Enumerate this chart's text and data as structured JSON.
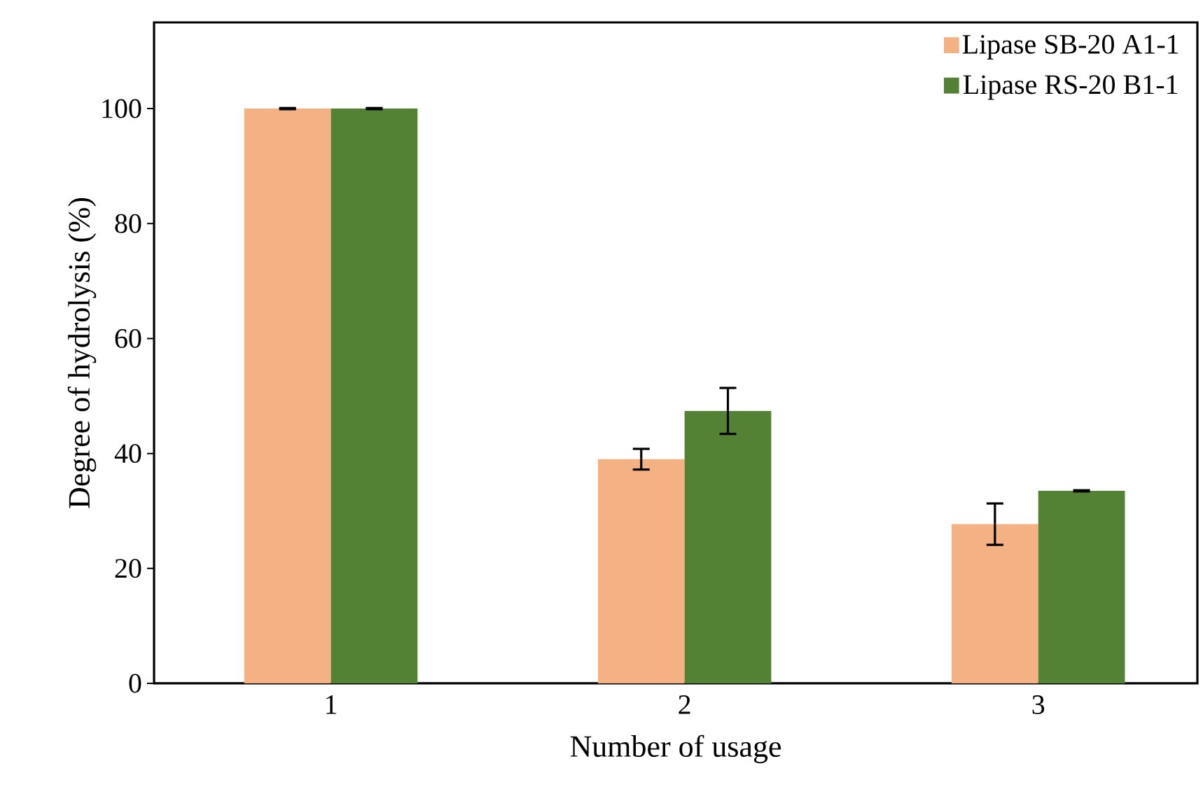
{
  "chart_data": {
    "type": "bar",
    "xlabel": "Number of usage",
    "ylabel": "Degree of hydrolysis (%)",
    "categories": [
      "1",
      "2",
      "3"
    ],
    "series": [
      {
        "name": "Lipase SB-20 A1-1",
        "color": "#f4b183",
        "values": [
          100,
          39.0,
          27.7
        ],
        "errors": [
          0.1,
          1.8,
          3.6
        ]
      },
      {
        "name": "Lipase RS-20 B1-1",
        "color": "#548235",
        "values": [
          100,
          47.4,
          33.5
        ],
        "errors": [
          0.1,
          4.0,
          0.1
        ]
      }
    ],
    "ylim": [
      0,
      115
    ],
    "yticks": [
      0,
      20,
      40,
      60,
      80,
      100
    ],
    "legend": "top right",
    "grid": false
  }
}
